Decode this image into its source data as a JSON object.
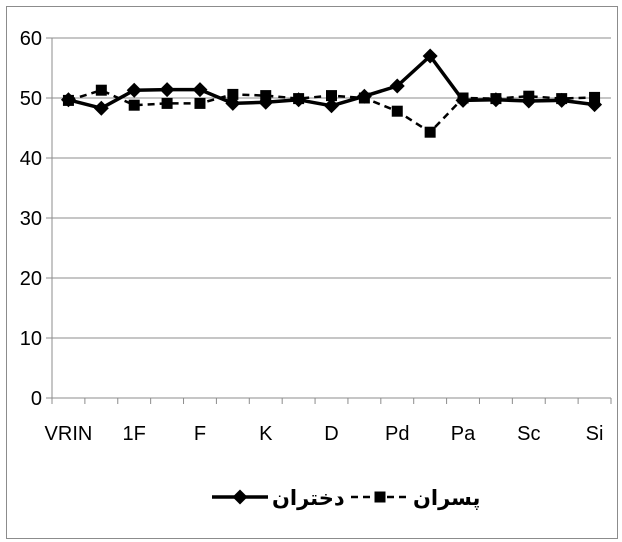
{
  "chart_data": {
    "type": "line",
    "categories": [
      "VRIN",
      "",
      "1F",
      "",
      "F",
      "",
      "K",
      "",
      "D",
      "",
      "Pd",
      "",
      "Pa",
      "",
      "Sc",
      "",
      "Si"
    ],
    "x_tick_labels": [
      "VRIN",
      "1F",
      "F",
      "K",
      "D",
      "Pd",
      "Pa",
      "Sc",
      "Si"
    ],
    "ylim": [
      0,
      60
    ],
    "y_ticks": [
      0,
      10,
      20,
      30,
      40,
      50,
      60
    ],
    "grid": "horizontal",
    "legend_position": "bottom",
    "series": [
      {
        "name": "دختران",
        "marker": "diamond",
        "line": "solid",
        "color": "#000000",
        "values": [
          49.7,
          48.3,
          51.3,
          51.4,
          51.4,
          49.1,
          49.3,
          49.7,
          48.7,
          50.3,
          52.0,
          57.0,
          49.6,
          49.7,
          49.5,
          49.6,
          48.9
        ]
      },
      {
        "name": "پسران",
        "marker": "square",
        "line": "dashed",
        "color": "#000000",
        "values": [
          49.6,
          51.3,
          48.8,
          49.1,
          49.1,
          50.6,
          50.4,
          49.9,
          50.4,
          50.0,
          47.8,
          44.3,
          50.0,
          49.9,
          50.3,
          49.9,
          50.1
        ]
      }
    ]
  }
}
